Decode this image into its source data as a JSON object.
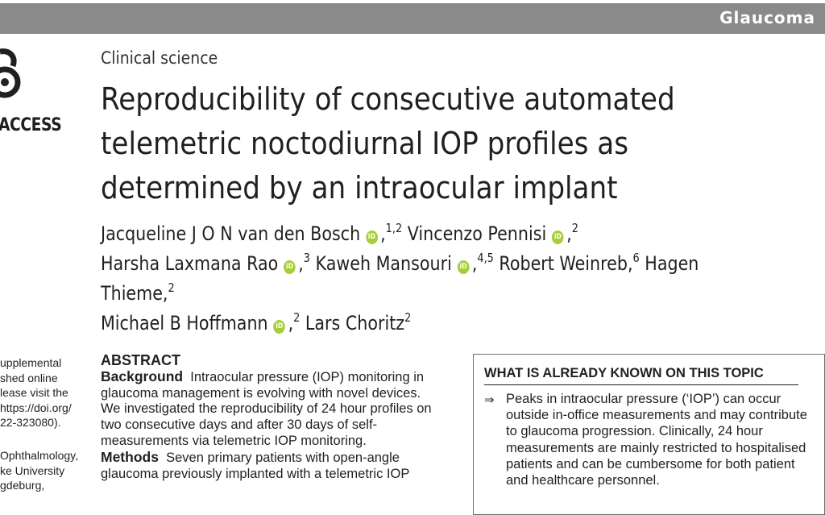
{
  "header": {
    "journal": "Glaucoma"
  },
  "oa_badge": {
    "text": "ACCESS"
  },
  "article": {
    "section": "Clinical science",
    "title": "Reproducibility of consecutive automated telemetric noctodiurnal IOP profiles as determined by an intraocular implant",
    "authors": [
      {
        "name": "Jacqueline J O N van den Bosch",
        "orcid": true,
        "sep": ",",
        "aff": "1,2"
      },
      {
        "name": "Vincenzo Pennisi",
        "orcid": true,
        "sep": ",",
        "aff": "2"
      },
      {
        "name": "Harsha Laxmana Rao",
        "orcid": true,
        "sep": ",",
        "aff": "3"
      },
      {
        "name": "Kaweh Mansouri",
        "orcid": true,
        "sep": ",",
        "aff": "4,5"
      },
      {
        "name": "Robert Weinreb,",
        "orcid": false,
        "sep": "",
        "aff": "6"
      },
      {
        "name": "Hagen Thieme,",
        "orcid": false,
        "sep": "",
        "aff": "2"
      },
      {
        "name": "Michael B Hoffmann",
        "orcid": true,
        "sep": ",",
        "aff": "2"
      },
      {
        "name": "Lars Choritz",
        "orcid": false,
        "sep": "",
        "aff": "2"
      }
    ],
    "orcid_label": "iD"
  },
  "sidebar": {
    "supplemental": [
      "upplemental",
      "shed online",
      "lease visit the",
      "https://doi.org/",
      "22-323080)."
    ],
    "affiliation": [
      "Ophthalmology,",
      "ke University",
      "gdeburg,"
    ]
  },
  "abstract": {
    "heading": "ABSTRACT",
    "background_label": "Background",
    "background_text": "Intraocular pressure (IOP) monitoring in glaucoma management is evolving with novel devices. We investigated the reproducibility of 24 hour profiles on two consecutive days and after 30 days of self-measurements via telemetric IOP monitoring.",
    "methods_label": "Methods",
    "methods_text": "Seven primary patients with open-angle glaucoma previously implanted with a telemetric IOP"
  },
  "known_box": {
    "heading": "WHAT IS ALREADY KNOWN ON THIS TOPIC",
    "bullet_symbol": "⇒",
    "bullet_text": "Peaks in intraocular pressure (‘IOP’) can occur outside in-office measurements and may contribute to glaucoma progression. Clinically, 24 hour measurements are mainly restricted to hospitalised patients and can be cumbersome for both patient and healthcare personnel."
  }
}
